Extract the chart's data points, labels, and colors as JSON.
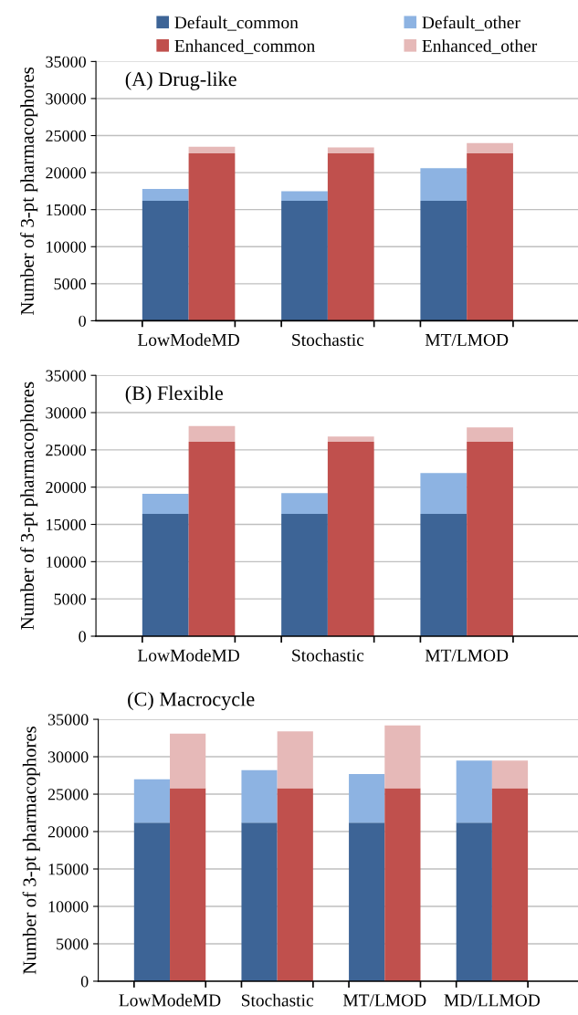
{
  "chart_data": [
    {
      "type": "bar",
      "title": "(A) Drug-like",
      "ylabel": "Number of 3-pt pharmacophores",
      "stacked": true,
      "categories": [
        "LowModeMD",
        null,
        null,
        "Stochastic",
        null,
        null,
        "MT/LMOD",
        null,
        null
      ],
      "ylim": [
        0,
        35000
      ],
      "yticks": [
        0,
        5000,
        10000,
        15000,
        20000,
        25000,
        30000,
        35000
      ],
      "grid": "y",
      "legend": "top",
      "series": [
        {
          "name": "Default_common",
          "color": "#3d6496",
          "values": [
            16200,
            null,
            null,
            16200,
            null,
            null,
            16200,
            null,
            null
          ]
        },
        {
          "name": "Default_other",
          "color": "#8db3e2",
          "values": [
            1600,
            null,
            null,
            1300,
            null,
            null,
            4400,
            null,
            null
          ]
        },
        {
          "name": "Enhanced_common",
          "color": "#c0504d",
          "values": [
            null,
            22600,
            null,
            null,
            22600,
            null,
            null,
            22600,
            null
          ]
        },
        {
          "name": "Enhanced_other",
          "color": "#e6b9b8",
          "values": [
            null,
            900,
            null,
            null,
            800,
            null,
            null,
            1400,
            null
          ]
        }
      ]
    },
    {
      "type": "bar",
      "title": "(B) Flexible",
      "ylabel": "Number of 3-pt pharmacophores",
      "stacked": true,
      "categories": [
        "LowModeMD",
        null,
        null,
        "Stochastic",
        null,
        null,
        "MT/LMOD",
        null,
        null
      ],
      "ylim": [
        0,
        35000
      ],
      "yticks": [
        0,
        5000,
        10000,
        15000,
        20000,
        25000,
        30000,
        35000
      ],
      "grid": "y",
      "series": [
        {
          "color": "#3d6496",
          "values": [
            16400,
            null,
            null,
            16400,
            null,
            null,
            16400,
            null,
            null
          ]
        },
        {
          "color": "#8db3e2",
          "values": [
            2700,
            null,
            null,
            2800,
            null,
            null,
            5500,
            null,
            null
          ]
        },
        {
          "color": "#c0504d",
          "values": [
            null,
            26100,
            null,
            null,
            26100,
            null,
            null,
            26100,
            null
          ]
        },
        {
          "color": "#e6b9b8",
          "values": [
            null,
            2100,
            null,
            null,
            700,
            null,
            null,
            1900,
            null
          ]
        }
      ]
    },
    {
      "type": "bar",
      "title": "(C) Macrocycle",
      "ylabel": "Number of 3-pt pharmacophores",
      "stacked": true,
      "categories": [
        "LowModeMD",
        null,
        null,
        "Stochastic",
        null,
        null,
        "MT/LMOD",
        null,
        null,
        "MD/LLMOD",
        null,
        null
      ],
      "ylim": [
        0,
        35000
      ],
      "yticks": [
        0,
        5000,
        10000,
        15000,
        20000,
        25000,
        30000,
        35000
      ],
      "grid": "y",
      "series": [
        {
          "color": "#3d6496",
          "values": [
            21200,
            null,
            null,
            21200,
            null,
            null,
            21200,
            null,
            null,
            21200,
            null,
            null
          ]
        },
        {
          "color": "#8db3e2",
          "values": [
            5800,
            null,
            null,
            7000,
            null,
            null,
            6500,
            null,
            null,
            8300,
            null,
            null
          ]
        },
        {
          "color": "#c0504d",
          "values": [
            null,
            25800,
            null,
            null,
            25800,
            null,
            null,
            25800,
            null,
            null,
            25800,
            null
          ]
        },
        {
          "color": "#e6b9b8",
          "values": [
            null,
            7300,
            null,
            null,
            7600,
            null,
            null,
            8400,
            null,
            null,
            3700,
            null
          ]
        }
      ]
    }
  ]
}
